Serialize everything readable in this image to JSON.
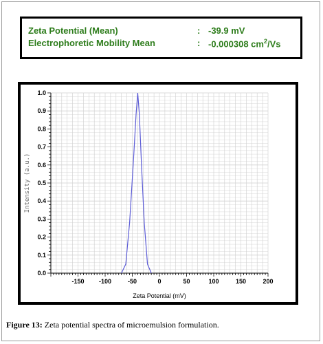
{
  "summary": {
    "zeta_label": "Zeta Potential (Mean)",
    "zeta_sep": ":",
    "zeta_value": "-39.9 mV",
    "mobility_label": "Electrophoretic Mobility Mean",
    "mobility_sep": ":",
    "mobility_value_prefix": "-0.000308 cm",
    "mobility_value_exp": "2",
    "mobility_value_suffix": "/Vs"
  },
  "caption": {
    "label": "Figure 13:",
    "text": " Zeta potential spectra of microemulsion formulation."
  },
  "colors": {
    "summary_text": "#2e7d1c",
    "line": "#5b5bd6",
    "grid": "#cfcfcf"
  },
  "chart_data": {
    "type": "line",
    "title": "",
    "xlabel": "Zeta Potential (mV)",
    "ylabel": "Intensity (a.u.)",
    "xlim": [
      -200,
      200
    ],
    "ylim": [
      0,
      1.0
    ],
    "x_ticks": [
      -150,
      -100,
      -50,
      0,
      50,
      100,
      150,
      200
    ],
    "y_ticks": [
      "0.0",
      "0.1",
      "0.2",
      "0.3",
      "0.4",
      "0.5",
      "0.6",
      "0.7",
      "0.8",
      "0.9",
      "1.0"
    ],
    "grid": true,
    "series": [
      {
        "x": [
          -70,
          -62,
          -55,
          -48,
          -43,
          -40,
          -37,
          -33,
          -28,
          -22,
          -15
        ],
        "y": [
          0.0,
          0.05,
          0.28,
          0.62,
          0.88,
          1.0,
          0.88,
          0.6,
          0.28,
          0.05,
          0.0
        ]
      }
    ]
  }
}
